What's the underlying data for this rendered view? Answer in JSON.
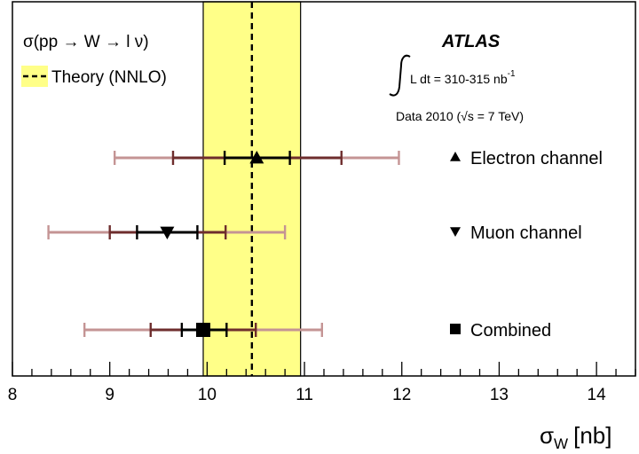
{
  "chart_data": {
    "type": "scatter",
    "title": "",
    "experiment": "ATLAS",
    "luminosity_text": "L dt = 310-315 nb",
    "luminosity_sup": "-1",
    "data_text": "Data 2010 (√s = 7 TeV)",
    "process_text": "σ(pp → W → l ν)",
    "xlabel": "σ",
    "xlabel_sub": "W",
    "xlabel_unit": "[nb]",
    "xlim": [
      8,
      14.4
    ],
    "x_ticks": [
      8,
      9,
      10,
      11,
      12,
      13,
      14
    ],
    "theory": {
      "label": "Theory (NNLO)",
      "central": 10.46,
      "band": [
        9.96,
        10.96
      ],
      "band_color": "#ffff88",
      "line_color": "#000000"
    },
    "measurements": [
      {
        "name": "Electron channel",
        "marker": "triangle-up",
        "value": 10.51,
        "stat": [
          10.18,
          10.85
        ],
        "stat_syst": [
          9.65,
          11.38
        ],
        "total": [
          9.05,
          11.97
        ]
      },
      {
        "name": "Muon channel",
        "marker": "triangle-down",
        "value": 9.59,
        "stat": [
          9.28,
          9.9
        ],
        "stat_syst": [
          9.0,
          10.19
        ],
        "total": [
          8.37,
          10.8
        ]
      },
      {
        "name": "Combined",
        "marker": "square",
        "value": 9.96,
        "stat": [
          9.74,
          10.2
        ],
        "stat_syst": [
          9.42,
          10.5
        ],
        "total": [
          8.74,
          11.18
        ]
      }
    ],
    "colors": {
      "stat": "#000000",
      "stat_syst": "#6e2d2d",
      "total": "#c49494"
    }
  }
}
